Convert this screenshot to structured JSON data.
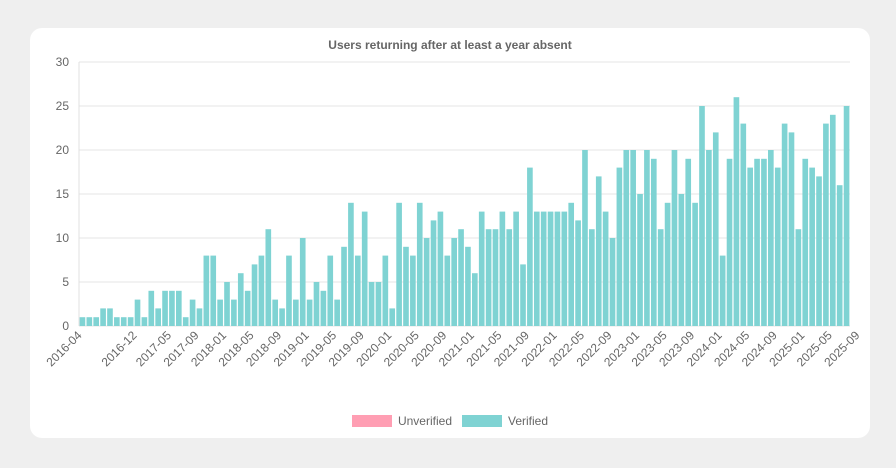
{
  "chart_data": {
    "type": "bar",
    "title": "Users returning after at least a year absent",
    "xlabel": "",
    "ylabel": "",
    "ylim": [
      0,
      30
    ],
    "y_ticks": [
      0,
      5,
      10,
      15,
      20,
      25,
      30
    ],
    "grid": true,
    "legend_position": "bottom",
    "start_month": "2016-04",
    "x_tick_labels": [
      "2016-04",
      "2016-12",
      "2017-05",
      "2017-09",
      "2018-01",
      "2018-05",
      "2018-09",
      "2019-01",
      "2019-05",
      "2019-09",
      "2020-01",
      "2020-05",
      "2020-09",
      "2021-01",
      "2021-05",
      "2021-09",
      "2022-01",
      "2022-05",
      "2022-09",
      "2023-01",
      "2023-05",
      "2023-09",
      "2024-01",
      "2024-05",
      "2024-09",
      "2025-01",
      "2025-05",
      "2025-09"
    ],
    "series": [
      {
        "name": "Unverified",
        "color": "#ff9eb3",
        "values": []
      },
      {
        "name": "Verified",
        "color": "#7fd3d3",
        "values": [
          1,
          1,
          1,
          2,
          2,
          1,
          1,
          1,
          3,
          1,
          4,
          2,
          4,
          4,
          4,
          1,
          3,
          2,
          8,
          8,
          3,
          5,
          3,
          6,
          4,
          7,
          8,
          11,
          3,
          2,
          8,
          3,
          10,
          3,
          5,
          4,
          8,
          3,
          9,
          14,
          8,
          13,
          5,
          5,
          8,
          2,
          14,
          9,
          8,
          14,
          10,
          12,
          13,
          8,
          10,
          11,
          9,
          6,
          13,
          11,
          11,
          13,
          11,
          13,
          7,
          18,
          13,
          13,
          13,
          13,
          13,
          14,
          12,
          20,
          11,
          17,
          13,
          10,
          18,
          20,
          20,
          15,
          20,
          19,
          11,
          14,
          20,
          15,
          19,
          14,
          25,
          20,
          22,
          8,
          19,
          26,
          23,
          18,
          19,
          19,
          20,
          18,
          23,
          22,
          11,
          19,
          18,
          17,
          23,
          24,
          16,
          25
        ]
      }
    ]
  }
}
